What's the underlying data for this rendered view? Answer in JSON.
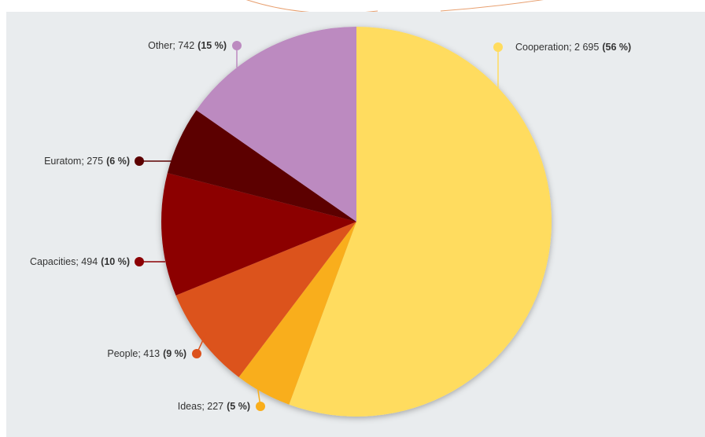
{
  "chart_data": {
    "type": "pie",
    "value_labels": [
      "Cooperation; 2 695",
      "Ideas; 227",
      "People; 413",
      "Capacities; 494",
      "Euratom; 275",
      "Other; 742"
    ],
    "values": [
      2695,
      227,
      413,
      494,
      275,
      742
    ],
    "percent_labels": [
      "(56 %)",
      "(5 %)",
      "(9 %)",
      "(10 %)",
      "(6 %)",
      "(15 %)"
    ],
    "colors": [
      "#ffdc5e",
      "#f9ae1c",
      "#dc521d",
      "#8c0004",
      "#5c0000",
      "#bc8ac0"
    ]
  }
}
